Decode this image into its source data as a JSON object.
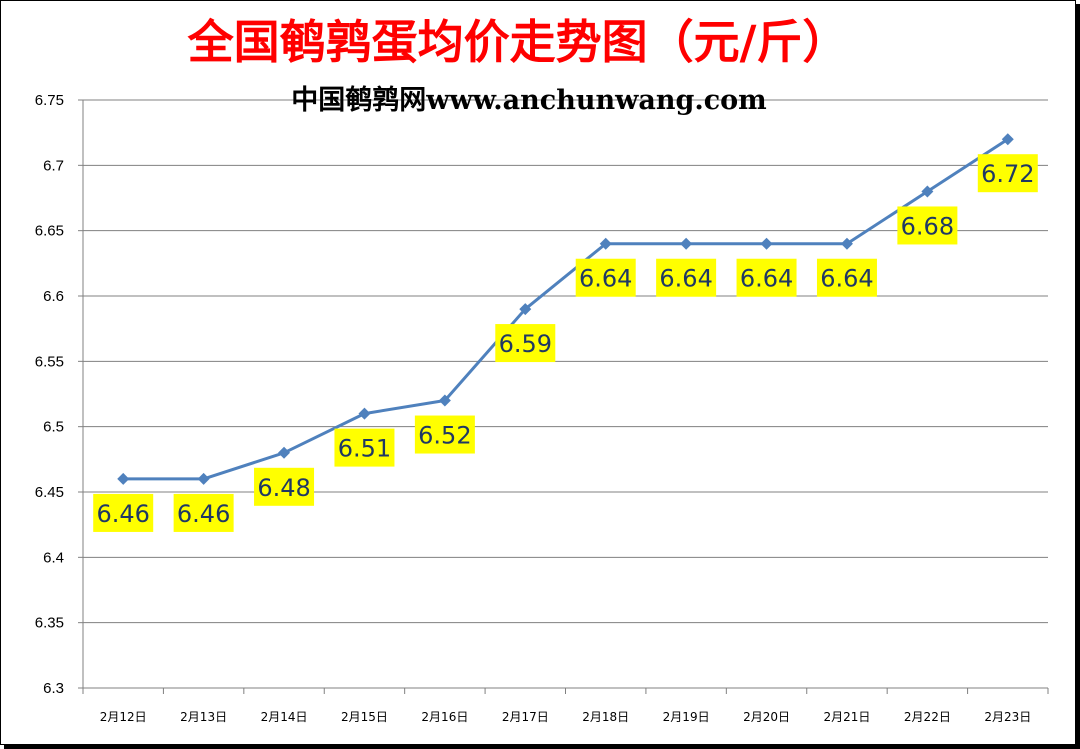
{
  "colors": {
    "title": "#ff0000",
    "subtitle": "#000000",
    "line": "#4f81bd",
    "marker": "#4f81bd",
    "label_bg": "#ffff00",
    "label_text": "#1f3864",
    "grid": "#808080"
  },
  "chart_data": {
    "type": "line",
    "title": "全国鹌鹑蛋均价走势图（元/斤）",
    "subtitle": "中国鹌鹑网www.anchunwang.com",
    "categories": [
      "2月12日",
      "2月13日",
      "2月14日",
      "2月15日",
      "2月16日",
      "2月17日",
      "2月18日",
      "2月19日",
      "2月20日",
      "2月21日",
      "2月22日",
      "2月23日"
    ],
    "series": [
      {
        "values": [
          6.46,
          6.46,
          6.48,
          6.51,
          6.52,
          6.59,
          6.64,
          6.64,
          6.64,
          6.64,
          6.68,
          6.72
        ],
        "labels": [
          "6.46",
          "6.46",
          "6.48",
          "6.51",
          "6.52",
          "6.59",
          "6.64",
          "6.64",
          "6.64",
          "6.64",
          "6.68",
          "6.72"
        ]
      }
    ],
    "ylim": [
      6.3,
      6.75
    ],
    "yticks": [
      "6.3",
      "6.35",
      "6.4",
      "6.45",
      "6.5",
      "6.55",
      "6.6",
      "6.65",
      "6.7",
      "6.75"
    ],
    "grid": true,
    "legend": "none",
    "marker": "diamond"
  }
}
